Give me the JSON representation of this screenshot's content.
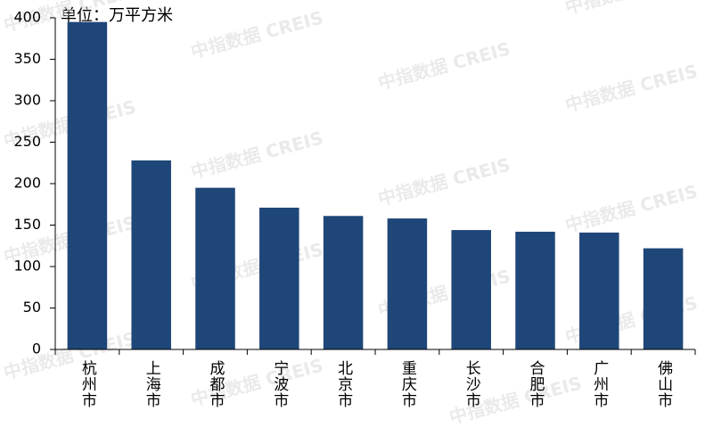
{
  "chart_data": {
    "type": "bar",
    "unit": "单位：万平方米",
    "watermark": "中指数据 CREIS",
    "categories": [
      "杭州市",
      "上海市",
      "成都市",
      "宁波市",
      "北京市",
      "重庆市",
      "长沙市",
      "合肥市",
      "广州市",
      "佛山市"
    ],
    "values": [
      395,
      228,
      195,
      171,
      161,
      158,
      144,
      142,
      141,
      122
    ],
    "color": "#1f4678",
    "ylim": [
      0,
      400
    ],
    "yticks": [
      0,
      50,
      100,
      150,
      200,
      250,
      300,
      350,
      400
    ],
    "grid": false
  }
}
